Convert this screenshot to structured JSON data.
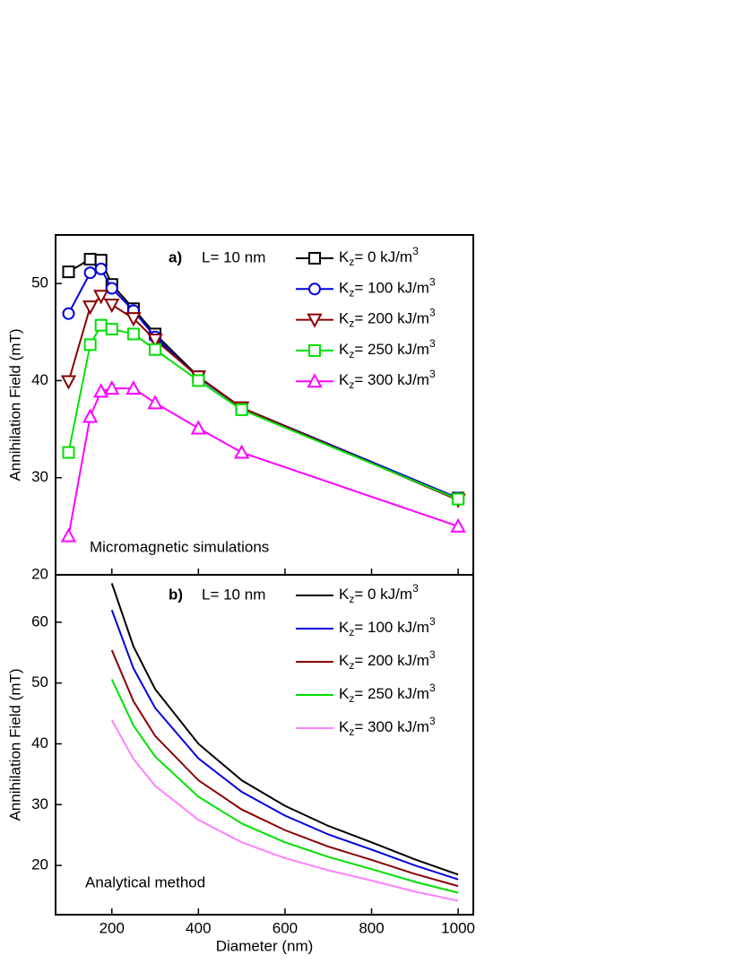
{
  "chart_data": [
    {
      "type": "line",
      "panel_label": "a)",
      "annotation": "L= 10 nm",
      "note": "Micromagnetic simulations",
      "ylabel": "Annihilation Field (mT)",
      "x": [
        100,
        150,
        175,
        200,
        250,
        300,
        400,
        500,
        1000
      ],
      "xlim": [
        70,
        1035
      ],
      "ylim": [
        20,
        55
      ],
      "xticks": [
        200,
        400,
        600,
        800,
        1000
      ],
      "xtick_labels": false,
      "yticks": [
        20,
        30,
        40,
        50
      ],
      "series": [
        {
          "name": "Kz= 0 kJ/m3",
          "color": "#000000",
          "marker": "square",
          "values": [
            51.2,
            52.5,
            52.4,
            49.9,
            47.4,
            44.8,
            40.4,
            37.2,
            27.9
          ]
        },
        {
          "name": "Kz= 100 kJ/m3",
          "color": "#0000e0",
          "marker": "circle",
          "values": [
            46.9,
            51.1,
            51.5,
            49.5,
            47.2,
            44.5,
            40.3,
            37.2,
            27.9
          ]
        },
        {
          "name": "Kz= 200 kJ/m3",
          "color": "#8b0000",
          "marker": "triangle-down",
          "values": [
            39.9,
            47.6,
            48.7,
            47.8,
            46.4,
            44.2,
            40.4,
            37.2,
            27.7
          ]
        },
        {
          "name": "Kz= 250 kJ/m3",
          "color": "#00e000",
          "marker": "square",
          "values": [
            32.6,
            43.7,
            45.7,
            45.3,
            44.8,
            43.2,
            40.0,
            37.0,
            27.8
          ]
        },
        {
          "name": "Kz= 300 kJ/m3",
          "color": "#ff00ff",
          "marker": "triangle-up",
          "values": [
            24.0,
            36.3,
            38.9,
            39.2,
            39.2,
            37.7,
            35.1,
            32.6,
            25.0
          ]
        }
      ]
    },
    {
      "type": "line",
      "panel_label": "b)",
      "annotation": "L= 10 nm",
      "note": "Analytical method",
      "ylabel": "Annihilation Field (mT)",
      "xlabel": "Diameter (nm)",
      "x": [
        200,
        250,
        300,
        400,
        500,
        600,
        700,
        800,
        900,
        1000
      ],
      "xlim": [
        70,
        1035
      ],
      "ylim": [
        11.9,
        67.8
      ],
      "xticks": [
        200,
        400,
        600,
        800,
        1000
      ],
      "xtick_labels": true,
      "yticks": [
        20,
        30,
        40,
        50,
        60
      ],
      "series": [
        {
          "name": "Kz= 0 kJ/m3",
          "color": "#000000",
          "values": [
            66.4,
            56.0,
            49.0,
            40.0,
            34.0,
            29.8,
            26.5,
            23.8,
            21.0,
            18.5
          ]
        },
        {
          "name": "Kz= 100 kJ/m3",
          "color": "#0000e0",
          "values": [
            62.0,
            52.4,
            45.9,
            37.6,
            32.1,
            28.2,
            25.1,
            22.6,
            20.0,
            17.7
          ]
        },
        {
          "name": "Kz= 200 kJ/m3",
          "color": "#8b0000",
          "values": [
            55.4,
            47.0,
            41.3,
            34.0,
            29.2,
            25.8,
            23.1,
            20.9,
            18.6,
            16.6
          ]
        },
        {
          "name": "Kz= 250 kJ/m3",
          "color": "#00e000",
          "values": [
            50.6,
            43.0,
            37.9,
            31.3,
            26.9,
            23.8,
            21.4,
            19.4,
            17.3,
            15.5
          ]
        },
        {
          "name": "Kz= 300 kJ/m3",
          "color": "#ff80ff",
          "values": [
            43.9,
            37.5,
            33.1,
            27.5,
            23.8,
            21.2,
            19.2,
            17.5,
            15.7,
            14.2
          ]
        }
      ]
    }
  ]
}
